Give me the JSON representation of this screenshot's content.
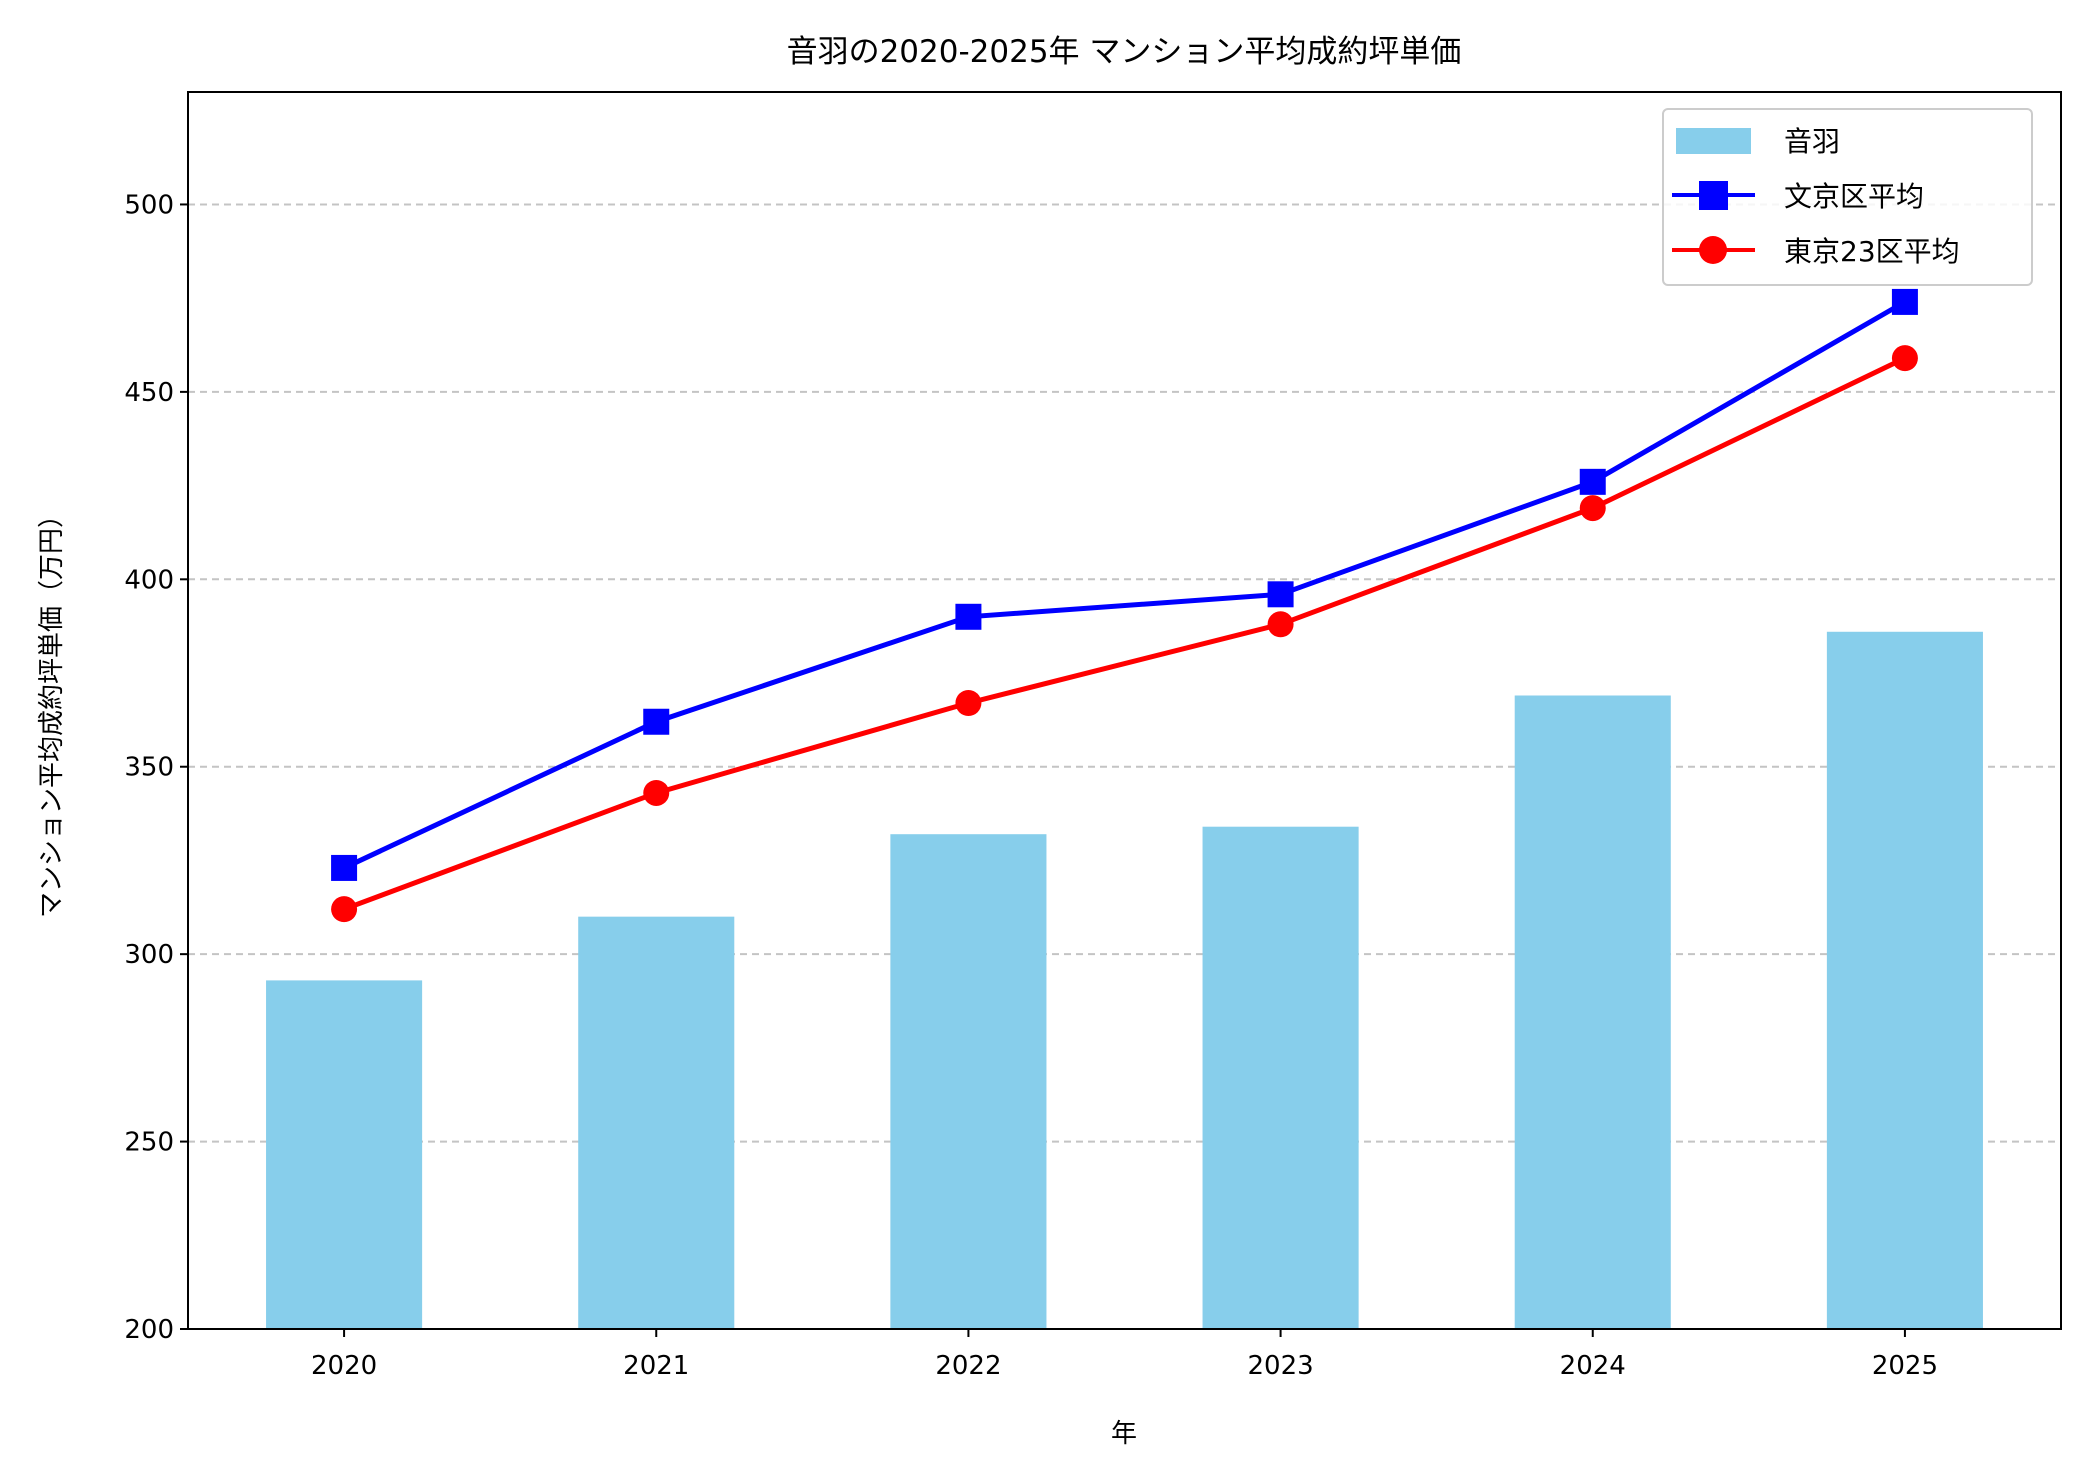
{
  "chart_data": {
    "type": "bar+line",
    "title": "音羽の2020-2025年 マンション平均成約坪単価",
    "xlabel": "年",
    "ylabel": "マンション平均成約坪単価（万円）",
    "categories": [
      "2020",
      "2021",
      "2022",
      "2023",
      "2024",
      "2025"
    ],
    "ylim": [
      200,
      530
    ],
    "yticks": [
      200,
      250,
      300,
      350,
      400,
      450,
      500
    ],
    "grid": "y-dashed",
    "legend_position": "top-right",
    "series": [
      {
        "name": "音羽",
        "kind": "bar",
        "color": "#87CEEB",
        "values": [
          293,
          310,
          332,
          334,
          369,
          386
        ]
      },
      {
        "name": "文京区平均",
        "kind": "line",
        "marker": "square",
        "color": "#0000FF",
        "values": [
          323,
          362,
          390,
          396,
          426,
          474
        ]
      },
      {
        "name": "東京23区平均",
        "kind": "line",
        "marker": "circle",
        "color": "#FF0000",
        "values": [
          312,
          343,
          367,
          388,
          419,
          459
        ]
      }
    ]
  }
}
